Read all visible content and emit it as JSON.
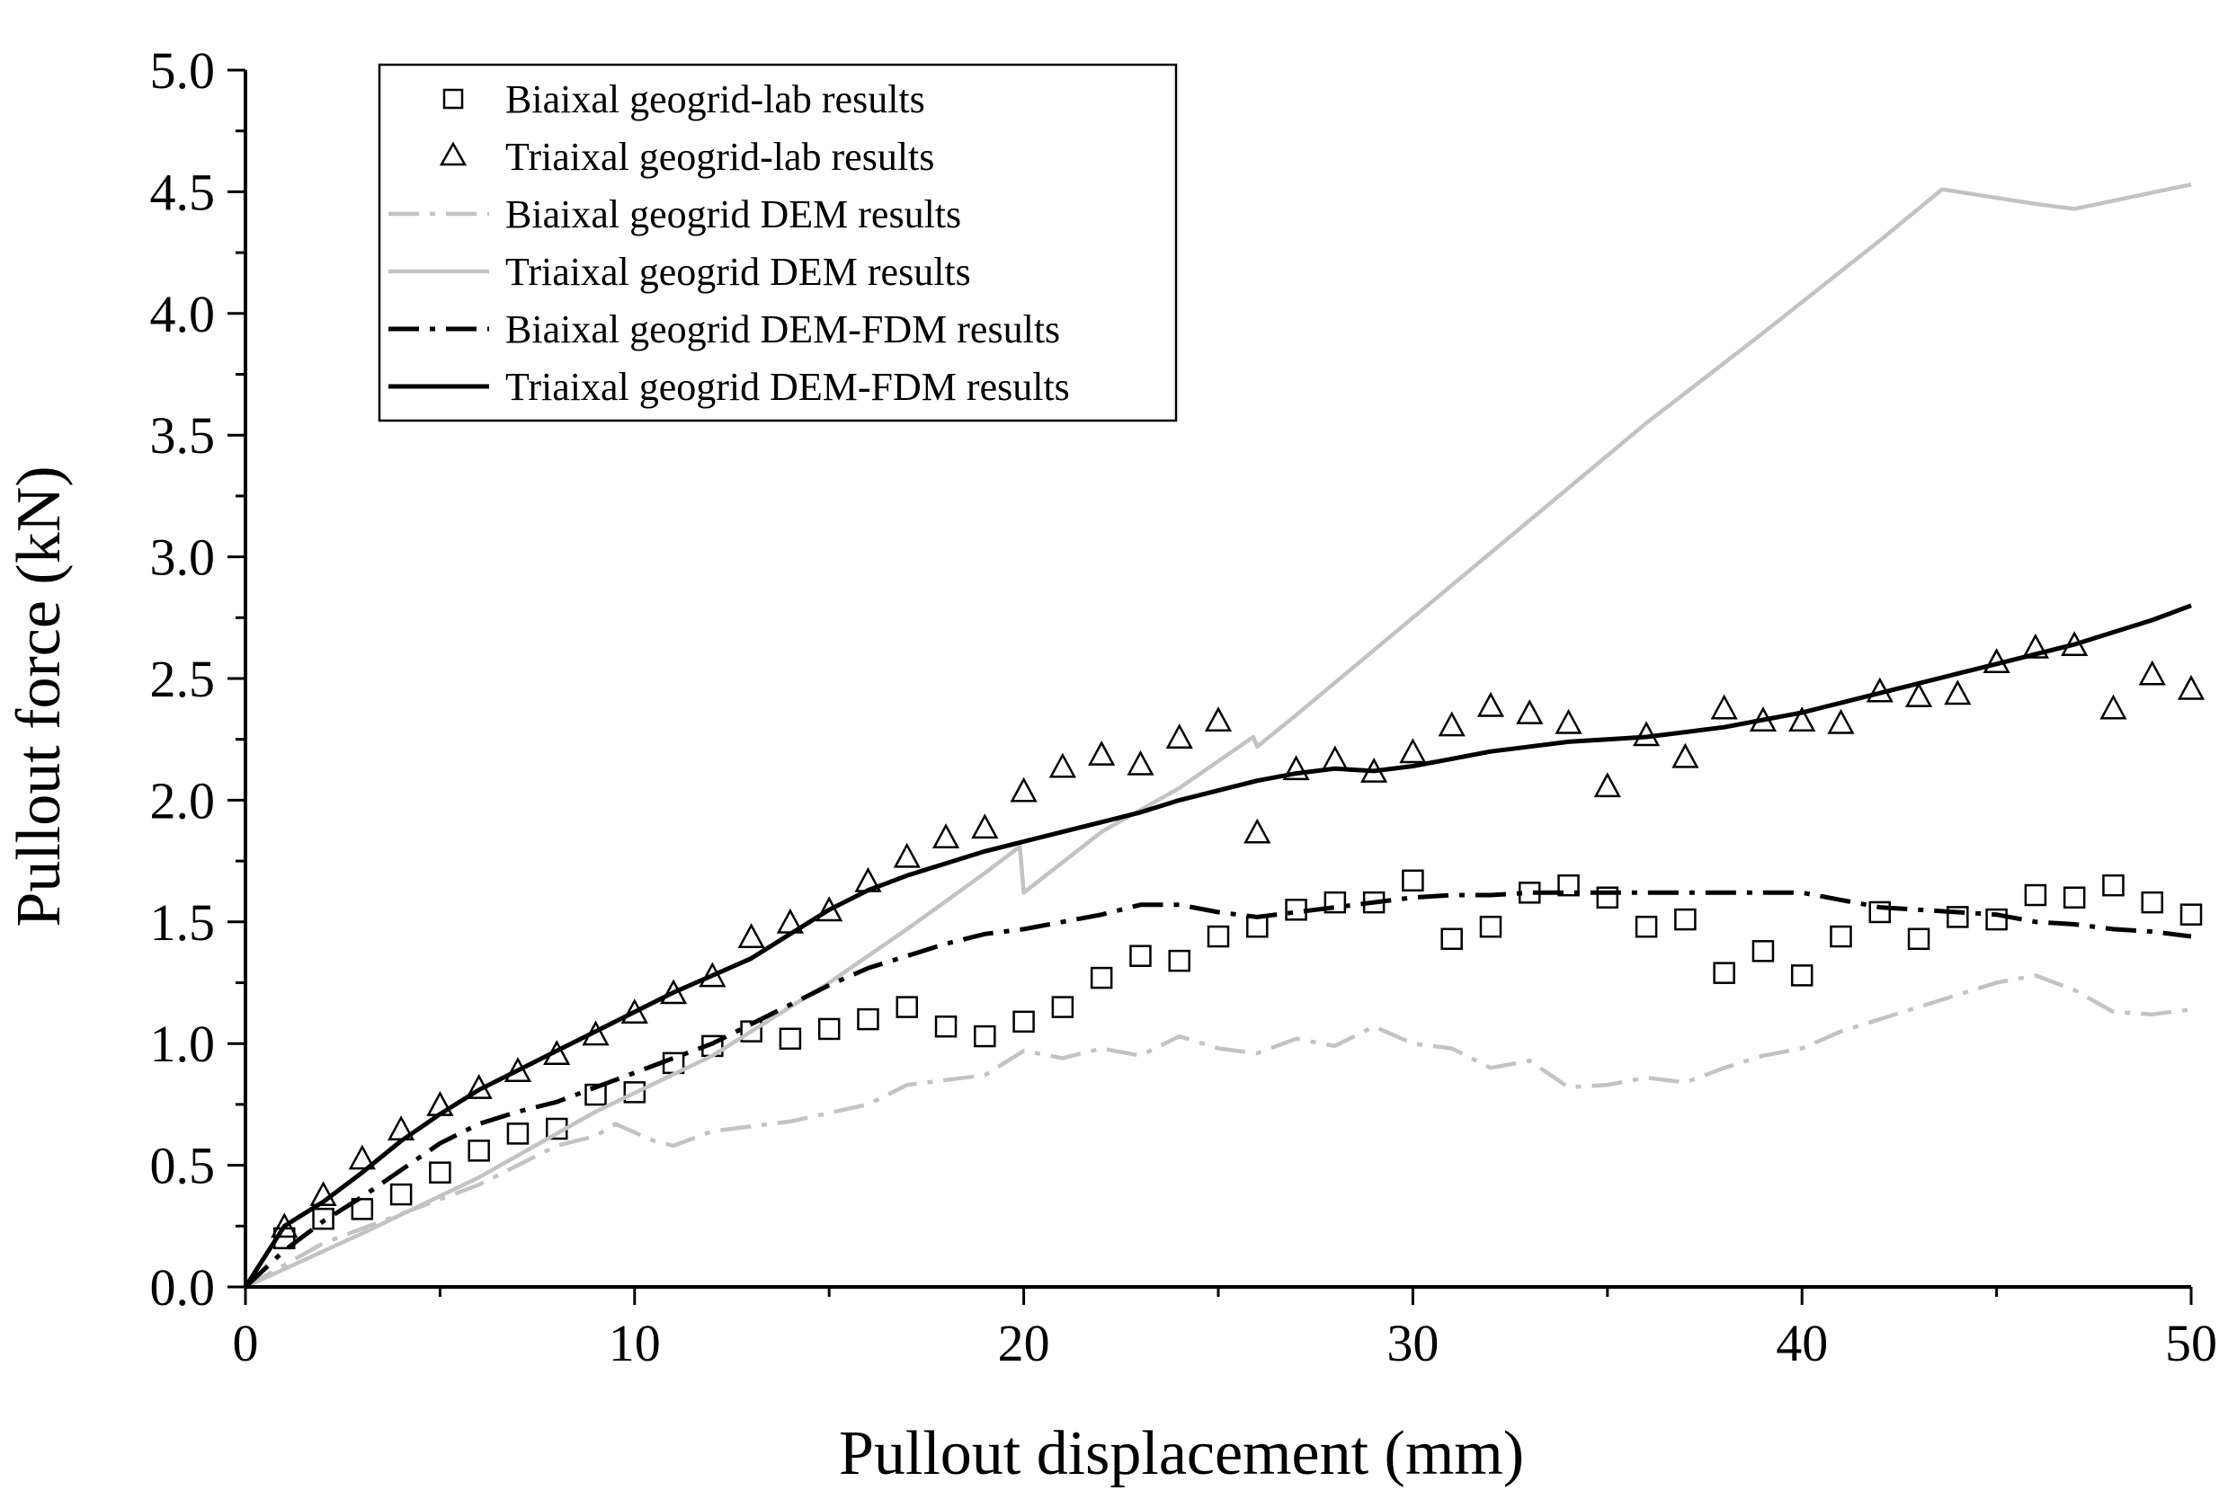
{
  "chart_data": {
    "type": "line",
    "title": "",
    "xlabel": "Pullout displacement (mm)",
    "ylabel": "Pullout force (kN)",
    "xlim": [
      0,
      50
    ],
    "ylim": [
      0,
      5.0
    ],
    "grid": false,
    "legend_position": "top-left",
    "x_ticks": [
      0,
      10,
      20,
      30,
      40,
      50
    ],
    "x_tick_labels": [
      "0",
      "10",
      "20",
      "30",
      "40",
      "50"
    ],
    "y_ticks": [
      0,
      0.5,
      1.0,
      1.5,
      2.0,
      2.5,
      3.0,
      3.5,
      4.0,
      4.5,
      5.0
    ],
    "y_tick_labels": [
      "0.0",
      "0.5",
      "1.0",
      "1.5",
      "2.0",
      "2.5",
      "3.0",
      "3.5",
      "4.0",
      "4.5",
      "5.0"
    ],
    "series": [
      {
        "name": "Biaixal geogrid-lab results",
        "style": "marker-square",
        "color": "#000000",
        "x": [
          1,
          2,
          3,
          4,
          5,
          6,
          7,
          8,
          9,
          10,
          11,
          12,
          13,
          14,
          15,
          16,
          17,
          18,
          19,
          20,
          21,
          22,
          23,
          24,
          25,
          26,
          27,
          28,
          29,
          30,
          31,
          32,
          33,
          34,
          35,
          36,
          37,
          38,
          39,
          40,
          41,
          42,
          43,
          44,
          45,
          46,
          47,
          48,
          49,
          50
        ],
        "y": [
          0.2,
          0.28,
          0.32,
          0.38,
          0.47,
          0.56,
          0.63,
          0.65,
          0.79,
          0.8,
          0.92,
          0.99,
          1.05,
          1.02,
          1.06,
          1.1,
          1.15,
          1.07,
          1.03,
          1.09,
          1.15,
          1.27,
          1.36,
          1.34,
          1.44,
          1.48,
          1.55,
          1.58,
          1.58,
          1.67,
          1.43,
          1.48,
          1.62,
          1.65,
          1.6,
          1.48,
          1.51,
          1.29,
          1.38,
          1.28,
          1.44,
          1.54,
          1.43,
          1.52,
          1.51,
          1.61,
          1.6,
          1.65,
          1.58,
          1.53
        ]
      },
      {
        "name": "Triaixal geogrid-lab results",
        "style": "marker-triangle",
        "color": "#000000",
        "x": [
          1,
          2,
          3,
          4,
          5,
          6,
          7,
          8,
          9,
          10,
          11,
          12,
          13,
          14,
          15,
          16,
          17,
          18,
          19,
          20,
          21,
          22,
          23,
          24,
          25,
          26,
          27,
          28,
          29,
          30,
          31,
          32,
          33,
          34,
          35,
          36,
          37,
          38,
          39,
          40,
          41,
          42,
          43,
          44,
          45,
          46,
          47,
          48,
          49,
          50
        ],
        "y": [
          0.24,
          0.37,
          0.52,
          0.64,
          0.74,
          0.81,
          0.88,
          0.95,
          1.03,
          1.12,
          1.2,
          1.27,
          1.43,
          1.49,
          1.54,
          1.66,
          1.76,
          1.84,
          1.88,
          2.03,
          2.13,
          2.18,
          2.14,
          2.25,
          2.32,
          1.86,
          2.12,
          2.16,
          2.11,
          2.19,
          2.3,
          2.38,
          2.35,
          2.31,
          2.05,
          2.26,
          2.17,
          2.37,
          2.32,
          2.32,
          2.31,
          2.44,
          2.42,
          2.43,
          2.56,
          2.62,
          2.63,
          2.37,
          2.51,
          2.45
        ]
      },
      {
        "name": "Biaixal geogrid DEM results",
        "style": "dashdot",
        "color": "#c3c3c3",
        "x": [
          0,
          2,
          4,
          6,
          8,
          9,
          9.5,
          10.5,
          11,
          12,
          14,
          16,
          17,
          19,
          20,
          21,
          22,
          23,
          24,
          25,
          26,
          27,
          28,
          29,
          30,
          31,
          32,
          33,
          34,
          35,
          36,
          37,
          38,
          39,
          40,
          41,
          42,
          43,
          44,
          45,
          46,
          47,
          48,
          49,
          50
        ],
        "y": [
          0,
          0.18,
          0.3,
          0.42,
          0.58,
          0.62,
          0.67,
          0.6,
          0.58,
          0.64,
          0.68,
          0.75,
          0.83,
          0.87,
          0.97,
          0.94,
          0.98,
          0.95,
          1.03,
          0.98,
          0.96,
          1.02,
          0.99,
          1.07,
          1.0,
          0.98,
          0.9,
          0.93,
          0.82,
          0.83,
          0.86,
          0.84,
          0.9,
          0.95,
          0.98,
          1.05,
          1.1,
          1.15,
          1.2,
          1.25,
          1.28,
          1.22,
          1.13,
          1.12,
          1.14
        ]
      },
      {
        "name": "Triaixal geogrid DEM results",
        "style": "solid",
        "color": "#c3c3c3",
        "x": [
          0,
          3,
          6,
          9,
          12,
          15,
          17,
          19,
          19.9,
          20,
          22,
          24,
          25.9,
          26,
          27,
          30,
          33,
          36,
          39,
          42,
          43.6,
          46,
          47,
          50
        ],
        "y": [
          0,
          0.22,
          0.45,
          0.72,
          0.95,
          1.25,
          1.47,
          1.7,
          1.81,
          1.62,
          1.87,
          2.05,
          2.26,
          2.22,
          2.35,
          2.75,
          3.15,
          3.55,
          3.92,
          4.3,
          4.51,
          4.45,
          4.43,
          4.53
        ]
      },
      {
        "name": "Biaixal geogrid DEM-FDM results",
        "style": "dashdot",
        "color": "#000000",
        "x": [
          0,
          1,
          2,
          3,
          4,
          5,
          6,
          7,
          8,
          9,
          10,
          11,
          12,
          13,
          14,
          15,
          16,
          17,
          18,
          19,
          20,
          21,
          22,
          23,
          24,
          25,
          26,
          27,
          28,
          29,
          30,
          31,
          32,
          33,
          34,
          35,
          36,
          37,
          38,
          39,
          40,
          41,
          42,
          43,
          44,
          45,
          46,
          47,
          48,
          49,
          50
        ],
        "y": [
          0,
          0.15,
          0.27,
          0.37,
          0.48,
          0.59,
          0.67,
          0.72,
          0.76,
          0.82,
          0.88,
          0.94,
          1.0,
          1.08,
          1.16,
          1.24,
          1.31,
          1.36,
          1.41,
          1.45,
          1.47,
          1.5,
          1.53,
          1.57,
          1.57,
          1.54,
          1.52,
          1.54,
          1.56,
          1.58,
          1.6,
          1.61,
          1.61,
          1.62,
          1.62,
          1.62,
          1.62,
          1.62,
          1.62,
          1.62,
          1.62,
          1.59,
          1.56,
          1.55,
          1.54,
          1.53,
          1.5,
          1.49,
          1.47,
          1.46,
          1.44
        ]
      },
      {
        "name": "Triaixal geogrid DEM-FDM results",
        "style": "solid",
        "color": "#000000",
        "x": [
          0,
          1,
          2,
          3,
          4,
          5,
          6,
          7,
          8,
          9,
          10,
          11,
          12,
          13,
          14,
          15,
          16,
          17,
          18,
          19,
          20,
          21,
          22,
          23,
          24,
          25,
          26,
          27,
          28,
          29,
          30,
          31,
          32,
          33,
          34,
          35,
          36,
          37,
          38,
          39,
          40,
          41,
          42,
          43,
          44,
          45,
          46,
          47,
          48,
          49,
          50
        ],
        "y": [
          0,
          0.25,
          0.35,
          0.47,
          0.6,
          0.71,
          0.81,
          0.89,
          0.97,
          1.05,
          1.13,
          1.21,
          1.28,
          1.35,
          1.45,
          1.55,
          1.63,
          1.69,
          1.74,
          1.79,
          1.83,
          1.87,
          1.91,
          1.95,
          2.0,
          2.04,
          2.08,
          2.11,
          2.13,
          2.12,
          2.14,
          2.17,
          2.2,
          2.22,
          2.24,
          2.25,
          2.26,
          2.28,
          2.3,
          2.33,
          2.36,
          2.4,
          2.44,
          2.48,
          2.52,
          2.56,
          2.6,
          2.64,
          2.69,
          2.74,
          2.8
        ]
      }
    ]
  }
}
